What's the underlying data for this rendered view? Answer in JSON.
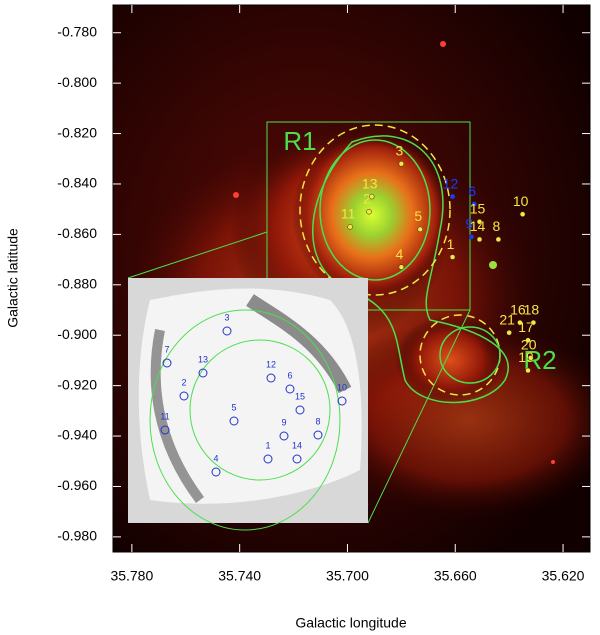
{
  "chart_data": {
    "type": "scatter",
    "x_label": "Galactic longitude",
    "y_label": "Galactic latitude",
    "xlim": [
      35.787,
      35.61
    ],
    "ylim": [
      -0.769,
      -0.986
    ],
    "xticks": [
      {
        "value": 35.78,
        "label": "35.780"
      },
      {
        "value": 35.74,
        "label": "35.740"
      },
      {
        "value": 35.7,
        "label": "35.700"
      },
      {
        "value": 35.66,
        "label": "35.660"
      },
      {
        "value": 35.62,
        "label": "35.620"
      }
    ],
    "yticks": [
      {
        "value": -0.78,
        "label": "-0.780"
      },
      {
        "value": -0.8,
        "label": "-0.800"
      },
      {
        "value": -0.82,
        "label": "-0.820"
      },
      {
        "value": -0.84,
        "label": "-0.840"
      },
      {
        "value": -0.86,
        "label": "-0.860"
      },
      {
        "value": -0.88,
        "label": "-0.880"
      },
      {
        "value": -0.9,
        "label": "-0.900"
      },
      {
        "value": -0.92,
        "label": "-0.920"
      },
      {
        "value": -0.94,
        "label": "-0.940"
      },
      {
        "value": -0.96,
        "label": "-0.960"
      },
      {
        "value": -0.98,
        "label": "-0.980"
      }
    ],
    "labels": [
      "1",
      "2",
      "3",
      "4",
      "5",
      "6",
      "8",
      "9",
      "10",
      "11",
      "12",
      "13",
      "14",
      "15",
      "16",
      "17",
      "18",
      "19",
      "20",
      "21"
    ],
    "x": [
      35.661,
      35.692,
      35.68,
      35.68,
      35.673,
      35.653,
      35.644,
      35.654,
      35.635,
      35.699,
      35.661,
      35.691,
      35.651,
      35.651,
      35.636,
      35.633,
      35.631,
      35.633,
      35.632,
      35.64
    ],
    "y": [
      -0.869,
      -0.851,
      -0.832,
      -0.873,
      -0.858,
      -0.848,
      -0.862,
      -0.861,
      -0.852,
      -0.857,
      -0.845,
      -0.845,
      -0.862,
      -0.855,
      -0.895,
      -0.902,
      -0.895,
      -0.914,
      -0.909,
      -0.899
    ],
    "colors": [
      "#f5e642",
      "#f5e642",
      "#f5e642",
      "#f5e642",
      "#f5e642",
      "#1a3cff",
      "#f5e642",
      "#1a3cff",
      "#f5e642",
      "#f5e642",
      "#1a3cff",
      "#f5e642",
      "#f5e642",
      "#f5e642",
      "#f5e642",
      "#f5e642",
      "#f5e642",
      "#f5e642",
      "#f5e642",
      "#f5e642"
    ],
    "annotations": [
      "R1",
      "R2"
    ],
    "inset_labels": [
      "1",
      "2",
      "3",
      "4",
      "5",
      "6",
      "7",
      "8",
      "9",
      "10",
      "11",
      "12",
      "13",
      "14",
      "15"
    ]
  }
}
